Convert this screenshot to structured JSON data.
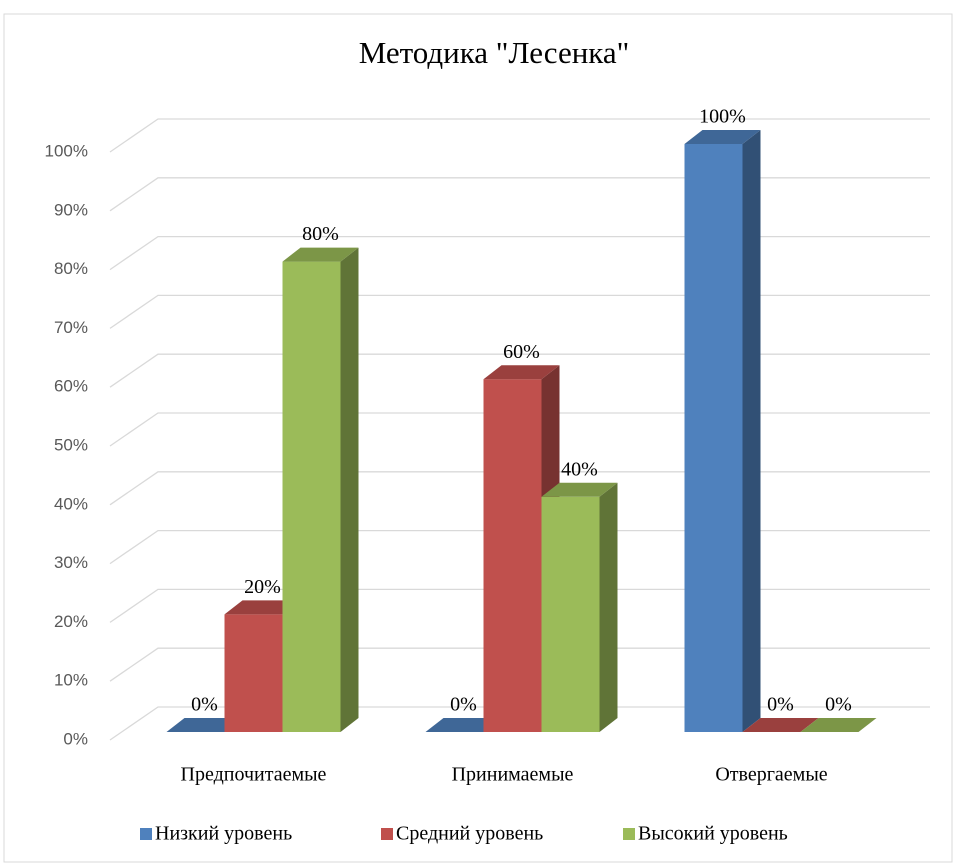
{
  "chart_data": {
    "type": "bar3d",
    "title": "Методика \"Лесенка\"",
    "categories": [
      "Предпочитаемые",
      "Принимаемые",
      "Отвергаемые"
    ],
    "series": [
      {
        "name": "Низкий уровень",
        "color": "#4f81bd",
        "values": [
          0,
          0,
          100
        ],
        "value_labels": [
          "0%",
          "0%",
          "100%"
        ]
      },
      {
        "name": "Средний уровень",
        "color": "#c0504d",
        "values": [
          20,
          60,
          0
        ],
        "value_labels": [
          "20%",
          "60%",
          "0%"
        ]
      },
      {
        "name": "Высокий уровень",
        "color": "#9bbb59",
        "values": [
          80,
          40,
          0
        ],
        "value_labels": [
          "80%",
          "40%",
          "0%"
        ]
      }
    ],
    "ylim": [
      0,
      100
    ],
    "yticks": [
      {
        "value": 0,
        "label": "0%"
      },
      {
        "value": 10,
        "label": "10%"
      },
      {
        "value": 20,
        "label": "20%"
      },
      {
        "value": 30,
        "label": "30%"
      },
      {
        "value": 40,
        "label": "40%"
      },
      {
        "value": 50,
        "label": "50%"
      },
      {
        "value": 60,
        "label": "60%"
      },
      {
        "value": 70,
        "label": "70%"
      },
      {
        "value": 80,
        "label": "80%"
      },
      {
        "value": 90,
        "label": "90%"
      },
      {
        "value": 100,
        "label": "100%"
      }
    ],
    "grid": true,
    "legend": "bottom"
  }
}
